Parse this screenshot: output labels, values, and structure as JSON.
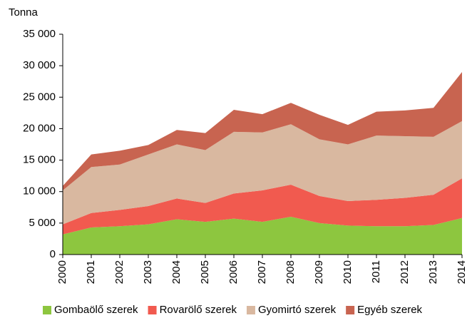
{
  "chart_data": {
    "type": "stacked_area",
    "y_label": "Tonna",
    "categories": [
      "2000",
      "2001",
      "2002",
      "2003",
      "2004",
      "2005",
      "2006",
      "2007",
      "2008",
      "2009",
      "2010",
      "2011",
      "2012",
      "2013",
      "2014"
    ],
    "series": [
      {
        "name": "Gombaölő szerek",
        "color": "#8dc63f",
        "values": [
          3200,
          4300,
          4500,
          4800,
          5600,
          5200,
          5700,
          5200,
          6000,
          5000,
          4600,
          4500,
          4500,
          4700,
          5800
        ]
      },
      {
        "name": "Rovarölő szerek",
        "color": "#f15a4f",
        "values": [
          1600,
          2300,
          2600,
          2900,
          3300,
          3000,
          4000,
          5000,
          5100,
          4300,
          3900,
          4200,
          4500,
          4800,
          6300
        ]
      },
      {
        "name": "Gyomirtó szerek",
        "color": "#d9b8a0",
        "values": [
          5400,
          7300,
          7200,
          8200,
          8600,
          8400,
          9800,
          9200,
          9600,
          9000,
          9000,
          10200,
          9800,
          9200,
          9100
        ]
      },
      {
        "name": "Egyéb szerek",
        "color": "#c86450",
        "values": [
          700,
          2000,
          2200,
          1500,
          2300,
          2700,
          3500,
          2900,
          3400,
          3900,
          3100,
          3800,
          4100,
          4600,
          7800
        ]
      }
    ],
    "ylim": [
      0,
      35000
    ],
    "yticks": [
      0,
      {
        "value": 5000,
        "label": "5 000"
      },
      {
        "value": 10000,
        "label": "10 000"
      },
      {
        "value": 15000,
        "label": "15 000"
      },
      {
        "value": 20000,
        "label": "20 000"
      },
      {
        "value": 25000,
        "label": "25 000"
      },
      {
        "value": 30000,
        "label": "30 000"
      },
      {
        "value": 35000,
        "label": "35 000"
      }
    ],
    "grid": false,
    "legend": "bottom"
  }
}
